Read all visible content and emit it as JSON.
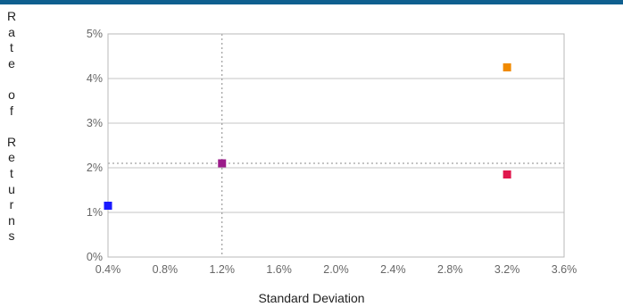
{
  "chart_data": {
    "type": "scatter",
    "title": "",
    "xlabel": "Standard Deviation",
    "ylabel": "Rate of Returns",
    "xlim": [
      0.4,
      3.6
    ],
    "ylim": [
      0,
      5
    ],
    "xticks": [
      "0.4%",
      "0.8%",
      "1.2%",
      "1.6%",
      "2.0%",
      "2.4%",
      "2.8%",
      "3.2%",
      "3.6%"
    ],
    "yticks": [
      "0%",
      "1%",
      "2%",
      "3%",
      "4%",
      "5%"
    ],
    "grid": "horizontal",
    "points": [
      {
        "x": 0.4,
        "y": 1.15,
        "color": "#1a1aff"
      },
      {
        "x": 1.2,
        "y": 2.1,
        "color": "#9b1b8a"
      },
      {
        "x": 3.2,
        "y": 1.85,
        "color": "#e0184d"
      },
      {
        "x": 3.2,
        "y": 4.25,
        "color": "#f08a00"
      }
    ],
    "reference_lines": {
      "x": 1.2,
      "y": 2.1
    }
  }
}
